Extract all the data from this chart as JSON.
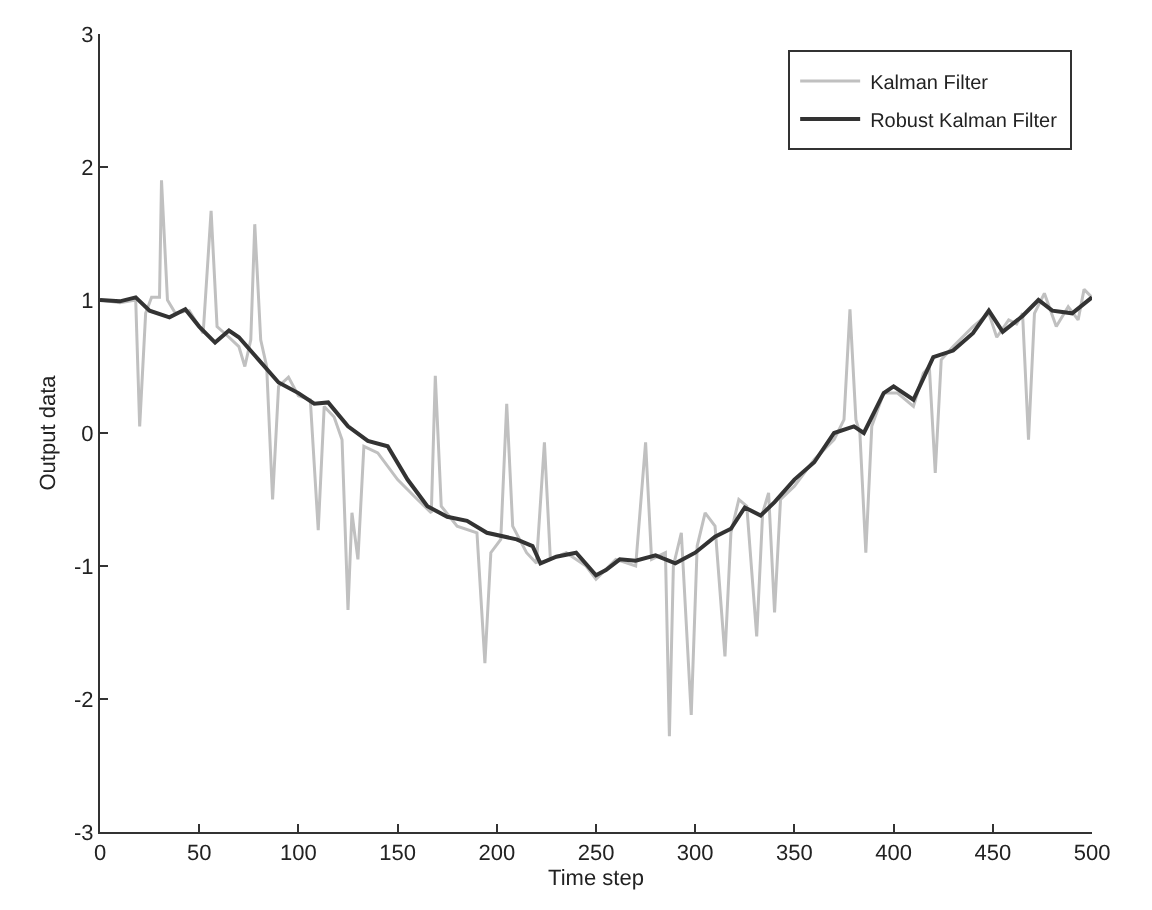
{
  "chart_data": {
    "type": "line",
    "xlabel": "Time step",
    "ylabel": "Output data",
    "xlim": [
      0,
      500
    ],
    "xticks": [
      0,
      50,
      100,
      150,
      200,
      250,
      300,
      350,
      400,
      450,
      500
    ],
    "ylim": [
      -3,
      3
    ],
    "yticks": [
      -3,
      -2,
      -1,
      0,
      1,
      2,
      3
    ],
    "legend": "top right",
    "marker": "none",
    "line_style": "solid",
    "series": [
      {
        "name": "Kalman Filter",
        "color": "#c0c0c0",
        "x": [
          0,
          10,
          18,
          20,
          23,
          26,
          30,
          31,
          34,
          38,
          45,
          52,
          56,
          59,
          65,
          70,
          73,
          76,
          78,
          81,
          84,
          87,
          90,
          95,
          100,
          106,
          110,
          113,
          118,
          122,
          125,
          127,
          130,
          133,
          140,
          150,
          160,
          167,
          169,
          172,
          180,
          190,
          194,
          197,
          202,
          205,
          208,
          215,
          220,
          224,
          227,
          235,
          245,
          250,
          260,
          270,
          275,
          278,
          285,
          287,
          289,
          293,
          298,
          301,
          305,
          310,
          315,
          318,
          322,
          326,
          331,
          334,
          337,
          340,
          343,
          350,
          360,
          370,
          375,
          378,
          381,
          383,
          386,
          389,
          395,
          402,
          410,
          415,
          418,
          421,
          424,
          430,
          440,
          448,
          452,
          458,
          462,
          465,
          468,
          471,
          476,
          482,
          488,
          493,
          496,
          500
        ],
        "values": [
          1.0,
          0.98,
          1.0,
          0.05,
          0.9,
          1.02,
          1.02,
          1.9,
          1.0,
          0.9,
          0.92,
          0.75,
          1.67,
          0.8,
          0.72,
          0.65,
          0.5,
          0.7,
          1.57,
          0.7,
          0.5,
          -0.5,
          0.35,
          0.42,
          0.28,
          0.25,
          -0.73,
          0.2,
          0.12,
          -0.05,
          -1.33,
          -0.6,
          -0.95,
          -0.1,
          -0.15,
          -0.35,
          -0.5,
          -0.6,
          0.43,
          -0.55,
          -0.7,
          -0.75,
          -1.73,
          -0.9,
          -0.8,
          0.22,
          -0.7,
          -0.9,
          -0.98,
          -0.07,
          -0.95,
          -0.9,
          -1.0,
          -1.1,
          -0.95,
          -1.0,
          -0.07,
          -0.95,
          -0.9,
          -2.28,
          -1.0,
          -0.75,
          -2.12,
          -0.85,
          -0.6,
          -0.7,
          -1.68,
          -0.75,
          -0.5,
          -0.55,
          -1.53,
          -0.6,
          -0.45,
          -1.35,
          -0.5,
          -0.4,
          -0.2,
          -0.05,
          0.1,
          0.93,
          0.1,
          0.0,
          -0.9,
          0.05,
          0.3,
          0.3,
          0.2,
          0.45,
          0.5,
          -0.3,
          0.55,
          0.65,
          0.8,
          0.9,
          0.72,
          0.85,
          0.82,
          0.9,
          -0.05,
          0.9,
          1.05,
          0.8,
          0.95,
          0.85,
          1.08,
          1.02
        ]
      },
      {
        "name": "Robust Kalman Filter",
        "color": "#333333",
        "x": [
          0,
          10,
          18,
          25,
          35,
          43,
          50,
          58,
          65,
          70,
          80,
          90,
          100,
          108,
          115,
          125,
          135,
          145,
          155,
          165,
          175,
          185,
          195,
          210,
          218,
          222,
          230,
          240,
          250,
          255,
          262,
          270,
          280,
          290,
          300,
          310,
          318,
          325,
          333,
          340,
          350,
          360,
          370,
          380,
          385,
          395,
          400,
          410,
          420,
          430,
          440,
          448,
          455,
          465,
          473,
          480,
          490,
          500
        ],
        "values": [
          1.0,
          0.99,
          1.02,
          0.92,
          0.87,
          0.93,
          0.8,
          0.68,
          0.77,
          0.72,
          0.55,
          0.38,
          0.3,
          0.22,
          0.23,
          0.05,
          -0.06,
          -0.1,
          -0.35,
          -0.55,
          -0.63,
          -0.66,
          -0.75,
          -0.8,
          -0.85,
          -0.98,
          -0.93,
          -0.9,
          -1.07,
          -1.03,
          -0.95,
          -0.96,
          -0.92,
          -0.98,
          -0.9,
          -0.78,
          -0.72,
          -0.56,
          -0.62,
          -0.52,
          -0.35,
          -0.22,
          0.0,
          0.05,
          0.0,
          0.3,
          0.35,
          0.25,
          0.57,
          0.62,
          0.75,
          0.92,
          0.76,
          0.88,
          1.0,
          0.92,
          0.9,
          1.02
        ]
      }
    ]
  }
}
